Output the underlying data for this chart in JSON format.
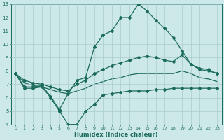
{
  "xlabel": "Humidex (Indice chaleur)",
  "bg_color": "#cce8e8",
  "line_color": "#1a6b5a",
  "grid_color": "#aacccc",
  "xlim": [
    -0.5,
    23.5
  ],
  "ylim": [
    4,
    13
  ],
  "xticks": [
    0,
    1,
    2,
    3,
    4,
    5,
    6,
    7,
    8,
    9,
    10,
    11,
    12,
    13,
    14,
    15,
    16,
    17,
    18,
    19,
    20,
    21,
    22,
    23
  ],
  "yticks": [
    4,
    5,
    6,
    7,
    8,
    9,
    10,
    11,
    12,
    13
  ],
  "curve_min_x": [
    0,
    1,
    2,
    3,
    4,
    5,
    6,
    7,
    8,
    9,
    10,
    11,
    12,
    13,
    14,
    15,
    16,
    17,
    18,
    19,
    20,
    21,
    22,
    23
  ],
  "curve_min_y": [
    7.8,
    6.7,
    6.7,
    6.8,
    6.0,
    5.0,
    4.0,
    4.0,
    5.0,
    5.5,
    6.2,
    6.3,
    6.4,
    6.5,
    6.5,
    6.5,
    6.6,
    6.6,
    6.7,
    6.7,
    6.7,
    6.7,
    6.7,
    6.7
  ],
  "curve_top_x": [
    0,
    1,
    2,
    3,
    4,
    5,
    6,
    7,
    8,
    9,
    10,
    11,
    12,
    13,
    14,
    15,
    16,
    17,
    18,
    19,
    20,
    21,
    22,
    23
  ],
  "curve_top_y": [
    7.8,
    6.8,
    6.8,
    6.9,
    6.1,
    5.1,
    6.3,
    7.3,
    7.5,
    9.8,
    10.7,
    11.0,
    12.0,
    12.0,
    13.0,
    12.5,
    11.8,
    11.2,
    10.5,
    9.5,
    8.5,
    8.2,
    8.1,
    7.8
  ],
  "curve_mid1_x": [
    0,
    1,
    2,
    3,
    4,
    5,
    6,
    7,
    8,
    9,
    10,
    11,
    12,
    13,
    14,
    15,
    16,
    17,
    18,
    19,
    20,
    21,
    22,
    23
  ],
  "curve_mid1_y": [
    7.8,
    7.3,
    7.1,
    7.0,
    6.8,
    6.6,
    6.5,
    7.0,
    7.3,
    7.8,
    8.1,
    8.4,
    8.6,
    8.8,
    9.0,
    9.1,
    9.0,
    8.8,
    8.7,
    9.2,
    8.5,
    8.1,
    8.0,
    7.8
  ],
  "curve_mid2_x": [
    0,
    1,
    2,
    3,
    4,
    5,
    6,
    7,
    8,
    9,
    10,
    11,
    12,
    13,
    14,
    15,
    16,
    17,
    18,
    19,
    20,
    21,
    22,
    23
  ],
  "curve_mid2_y": [
    7.8,
    7.1,
    6.9,
    6.8,
    6.6,
    6.4,
    6.3,
    6.5,
    6.7,
    7.0,
    7.2,
    7.4,
    7.5,
    7.7,
    7.8,
    7.8,
    7.8,
    7.8,
    7.8,
    8.0,
    7.8,
    7.5,
    7.4,
    7.2
  ]
}
